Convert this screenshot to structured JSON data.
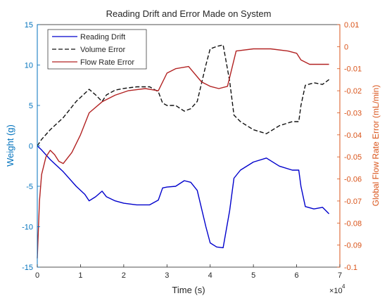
{
  "chart_data": {
    "type": "line",
    "title": "Reading Drift and Error Made on System",
    "xlabel": "Time (s)",
    "x_multiplier_label": "×10",
    "x_multiplier_exp": "4",
    "ylabel_left": "Weight (g)",
    "ylabel_right": "Global Flow Rate Error (mL/min)",
    "xlim": [
      0,
      7
    ],
    "ylim_left": [
      -15,
      15
    ],
    "ylim_right": [
      -0.1,
      0.01
    ],
    "xticks": [
      "0",
      "1",
      "2",
      "3",
      "4",
      "5",
      "6",
      "7"
    ],
    "yticks_left": [
      "-15",
      "-10",
      "-5",
      "0",
      "5",
      "10",
      "15"
    ],
    "yticks_right": [
      "-0.1",
      "-0.09",
      "-0.08",
      "-0.07",
      "-0.06",
      "-0.05",
      "-0.04",
      "-0.03",
      "-0.02",
      "-0.01",
      "0",
      "0.01"
    ],
    "grid": false,
    "legend_position": "top-left",
    "colors": {
      "axis_left": "#0072BD",
      "axis_right": "#D95319",
      "axis_bottom": "#262626"
    },
    "series": [
      {
        "name": "Reading Drift",
        "axis": "left",
        "color": "#0000CC",
        "style": "solid",
        "x": [
          0,
          0.1,
          0.3,
          0.6,
          0.9,
          1.1,
          1.2,
          1.35,
          1.5,
          1.6,
          1.8,
          2.0,
          2.3,
          2.6,
          2.8,
          2.9,
          3.0,
          3.2,
          3.4,
          3.55,
          3.7,
          3.9,
          4.0,
          4.15,
          4.3,
          4.45,
          4.55,
          4.7,
          5.0,
          5.3,
          5.6,
          5.9,
          6.05,
          6.1,
          6.2,
          6.4,
          6.6,
          6.75
        ],
        "y": [
          0,
          -0.5,
          -1.7,
          -3.2,
          -5.0,
          -6.0,
          -6.8,
          -6.3,
          -5.6,
          -6.3,
          -6.8,
          -7.1,
          -7.3,
          -7.3,
          -6.7,
          -5.2,
          -5.1,
          -5.0,
          -4.3,
          -4.5,
          -5.5,
          -10.0,
          -12.0,
          -12.5,
          -12.6,
          -8.0,
          -4.0,
          -3.0,
          -2.0,
          -1.5,
          -2.5,
          -3.0,
          -3.0,
          -5.0,
          -7.5,
          -7.8,
          -7.6,
          -8.4
        ]
      },
      {
        "name": "Volume Error",
        "axis": "left",
        "color": "#111111",
        "style": "dashed",
        "x": [
          0,
          0.1,
          0.3,
          0.6,
          0.9,
          1.1,
          1.2,
          1.35,
          1.5,
          1.6,
          1.8,
          2.0,
          2.3,
          2.6,
          2.8,
          2.9,
          3.0,
          3.2,
          3.4,
          3.55,
          3.7,
          3.9,
          4.0,
          4.15,
          4.3,
          4.45,
          4.55,
          4.7,
          5.0,
          5.3,
          5.6,
          5.9,
          6.05,
          6.1,
          6.2,
          6.4,
          6.6,
          6.75
        ],
        "y": [
          0,
          0.8,
          2.0,
          3.5,
          5.5,
          6.5,
          7.0,
          6.3,
          5.5,
          6.3,
          6.9,
          7.1,
          7.3,
          7.3,
          6.7,
          5.3,
          5.0,
          5.0,
          4.3,
          4.6,
          5.5,
          10.0,
          12.0,
          12.3,
          12.5,
          8.0,
          3.8,
          3.0,
          2.0,
          1.5,
          2.5,
          3.0,
          3.0,
          5.0,
          7.5,
          7.8,
          7.6,
          8.2
        ]
      },
      {
        "name": "Flow Rate Error",
        "axis": "right",
        "color": "#B22222",
        "style": "solid",
        "x": [
          0,
          0.05,
          0.1,
          0.2,
          0.3,
          0.4,
          0.5,
          0.6,
          0.8,
          1.0,
          1.2,
          1.5,
          1.8,
          2.1,
          2.5,
          2.8,
          3.0,
          3.2,
          3.5,
          3.8,
          4.0,
          4.2,
          4.4,
          4.6,
          5.0,
          5.4,
          5.8,
          6.0,
          6.1,
          6.3,
          6.6,
          6.75
        ],
        "y": [
          -0.096,
          -0.07,
          -0.058,
          -0.05,
          -0.047,
          -0.049,
          -0.052,
          -0.053,
          -0.048,
          -0.04,
          -0.03,
          -0.025,
          -0.022,
          -0.02,
          -0.019,
          -0.02,
          -0.012,
          -0.01,
          -0.009,
          -0.016,
          -0.018,
          -0.019,
          -0.018,
          -0.002,
          -0.001,
          -0.001,
          -0.002,
          -0.003,
          -0.006,
          -0.008,
          -0.008,
          -0.008
        ]
      }
    ]
  }
}
